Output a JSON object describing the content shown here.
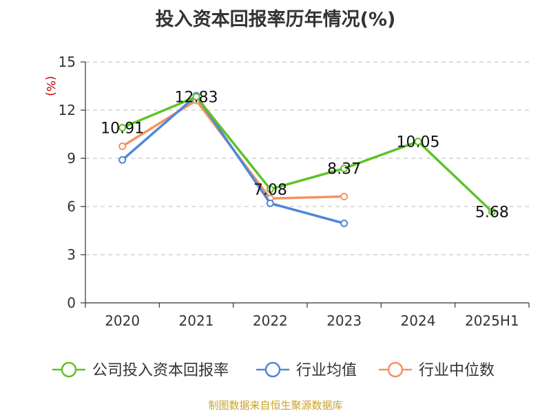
{
  "title": "投入资本回报率历年情况(%)",
  "source": "制图数据来自恒生聚源数据库",
  "chart_data": {
    "type": "line",
    "title": "投入资本回报率历年情况(%)",
    "ylabel": "(%)",
    "xlabel": "",
    "categories": [
      "2020",
      "2021",
      "2022",
      "2023",
      "2024",
      "2025H1"
    ],
    "ylim": [
      0,
      15
    ],
    "yticks": [
      0,
      3,
      6,
      9,
      12,
      15
    ],
    "grid": true,
    "legend_position": "bottom",
    "series": [
      {
        "name": "公司投入资本回报率",
        "color": "#5cc424",
        "values": [
          10.91,
          12.83,
          7.08,
          8.37,
          10.05,
          5.68
        ],
        "labels": [
          "10.91",
          "12.83",
          "7.08",
          "8.37",
          "10.05",
          "5.68"
        ]
      },
      {
        "name": "行业均值",
        "color": "#4f86d9",
        "values": [
          8.9,
          12.9,
          6.2,
          4.95,
          null,
          null
        ]
      },
      {
        "name": "行业中位数",
        "color": "#f59262",
        "values": [
          9.75,
          12.6,
          6.5,
          6.62,
          null,
          null
        ]
      }
    ]
  }
}
